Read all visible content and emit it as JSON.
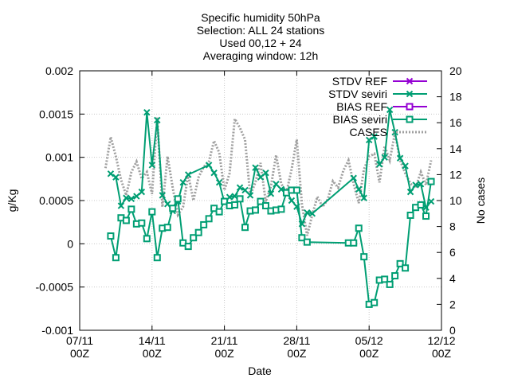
{
  "chart_data": {
    "type": "line",
    "title_lines": [
      "Specific humidity 50hPa",
      "Selection: ALL     24 stations",
      "Used 00,12 + 24",
      "Averaging window: 12h"
    ],
    "xlabel": "Date",
    "ylabel": "g/Kg",
    "y2label": "No cases",
    "xlim": [
      "2021-11-07T00:00",
      "2021-12-12T00:00"
    ],
    "ylim": [
      -0.001,
      0.002
    ],
    "y2lim": [
      0,
      20
    ],
    "x_ticks": [
      {
        "date": "2021-11-07T00:00",
        "line1": "07/11",
        "line2": "00Z"
      },
      {
        "date": "2021-11-14T00:00",
        "line1": "14/11",
        "line2": "00Z"
      },
      {
        "date": "2021-11-21T00:00",
        "line1": "21/11",
        "line2": "00Z"
      },
      {
        "date": "2021-11-28T00:00",
        "line1": "28/11",
        "line2": "00Z"
      },
      {
        "date": "2021-12-05T00:00",
        "line1": "05/12",
        "line2": "00Z"
      },
      {
        "date": "2021-12-12T00:00",
        "line1": "12/12",
        "line2": "00Z"
      }
    ],
    "y_ticks": [
      "-0.001",
      "-0.0005",
      "0",
      "0.0005",
      "0.001",
      "0.0015",
      "0.002"
    ],
    "y2_ticks": [
      "0",
      "2",
      "4",
      "6",
      "8",
      "10",
      "12",
      "14",
      "16",
      "18",
      "20"
    ],
    "grid": true,
    "legend_position": "top-right",
    "series": [
      {
        "name": "STDV REF",
        "axis": "y1",
        "color": "#9400d3",
        "marker": "x",
        "style": "solid",
        "x": [],
        "y": []
      },
      {
        "name": "STDV seviri",
        "axis": "y1",
        "color": "#009e73",
        "marker": "x",
        "style": "solid",
        "x": [
          "2021-11-10T00:00",
          "2021-11-10T12:00",
          "2021-11-11T00:00",
          "2021-11-11T12:00",
          "2021-11-12T00:00",
          "2021-11-12T12:00",
          "2021-11-13T00:00",
          "2021-11-13T12:00",
          "2021-11-14T00:00",
          "2021-11-14T12:00",
          "2021-11-15T00:00",
          "2021-11-15T12:00",
          "2021-11-16T00:00",
          "2021-11-16T12:00",
          "2021-11-17T00:00",
          "2021-11-17T12:00",
          "2021-11-19T12:00",
          "2021-11-20T00:00",
          "2021-11-20T12:00",
          "2021-11-21T00:00",
          "2021-11-21T12:00",
          "2021-11-22T00:00",
          "2021-11-22T12:00",
          "2021-11-23T00:00",
          "2021-11-23T12:00",
          "2021-11-24T00:00",
          "2021-11-24T12:00",
          "2021-11-25T00:00",
          "2021-11-25T12:00",
          "2021-11-26T00:00",
          "2021-11-26T12:00",
          "2021-11-27T00:00",
          "2021-11-27T12:00",
          "2021-11-28T00:00",
          "2021-11-28T12:00",
          "2021-11-29T00:00",
          "2021-11-29T12:00",
          "2021-12-03T12:00",
          "2021-12-04T00:00",
          "2021-12-04T12:00",
          "2021-12-05T00:00",
          "2021-12-05T12:00",
          "2021-12-06T00:00",
          "2021-12-06T12:00",
          "2021-12-07T00:00",
          "2021-12-07T12:00",
          "2021-12-08T00:00",
          "2021-12-08T12:00",
          "2021-12-09T00:00",
          "2021-12-09T12:00",
          "2021-12-10T00:00",
          "2021-12-10T12:00",
          "2021-12-11T00:00"
        ],
        "y": [
          0.00081,
          0.00077,
          0.00044,
          0.00053,
          0.00052,
          0.00055,
          0.0006,
          0.00152,
          0.00091,
          0.00143,
          0.00056,
          0.00046,
          0.00038,
          0.00049,
          0.00071,
          0.0008,
          0.00091,
          0.00082,
          0.00071,
          0.00048,
          0.00054,
          0.00055,
          0.00065,
          0.00062,
          0.00056,
          0.00088,
          0.00077,
          0.00082,
          0.00058,
          0.00069,
          0.00063,
          0.00061,
          0.0005,
          0.00043,
          0.00023,
          0.00036,
          0.00035,
          0.00076,
          0.00063,
          0.00053,
          0.0012,
          0.00124,
          0.00092,
          0.001,
          0.00155,
          0.00129,
          0.00099,
          0.0009,
          0.0006,
          0.00068,
          0.00069,
          0.00042,
          0.00049
        ]
      },
      {
        "name": "BIAS REF",
        "axis": "y1",
        "color": "#9400d3",
        "marker": "square",
        "style": "solid",
        "x": [],
        "y": []
      },
      {
        "name": "BIAS seviri",
        "axis": "y1",
        "color": "#009e73",
        "marker": "square",
        "style": "solid",
        "x": [
          "2021-11-10T00:00",
          "2021-11-10T12:00",
          "2021-11-11T00:00",
          "2021-11-11T12:00",
          "2021-11-12T00:00",
          "2021-11-12T12:00",
          "2021-11-13T00:00",
          "2021-11-13T12:00",
          "2021-11-14T00:00",
          "2021-11-14T12:00",
          "2021-11-15T00:00",
          "2021-11-15T12:00",
          "2021-11-16T00:00",
          "2021-11-16T12:00",
          "2021-11-17T00:00",
          "2021-11-17T12:00",
          "2021-11-18T00:00",
          "2021-11-18T12:00",
          "2021-11-19T00:00",
          "2021-11-19T12:00",
          "2021-11-20T00:00",
          "2021-11-20T12:00",
          "2021-11-21T00:00",
          "2021-11-21T12:00",
          "2021-11-22T00:00",
          "2021-11-22T12:00",
          "2021-11-23T00:00",
          "2021-11-23T12:00",
          "2021-11-24T00:00",
          "2021-11-24T12:00",
          "2021-11-25T00:00",
          "2021-11-25T12:00",
          "2021-11-26T00:00",
          "2021-11-26T12:00",
          "2021-11-27T00:00",
          "2021-11-27T12:00",
          "2021-11-28T00:00",
          "2021-11-28T12:00",
          "2021-11-29T00:00",
          "2021-12-03T00:00",
          "2021-12-03T12:00",
          "2021-12-04T00:00",
          "2021-12-04T12:00",
          "2021-12-05T00:00",
          "2021-12-05T12:00",
          "2021-12-06T00:00",
          "2021-12-06T12:00",
          "2021-12-07T00:00",
          "2021-12-07T12:00",
          "2021-12-08T00:00",
          "2021-12-08T12:00",
          "2021-12-09T00:00",
          "2021-12-09T12:00",
          "2021-12-10T00:00",
          "2021-12-10T12:00",
          "2021-12-11T00:00"
        ],
        "y": [
          9e-05,
          -0.00016,
          0.0003,
          0.00027,
          0.0004,
          0.00023,
          0.00024,
          6e-05,
          0.00037,
          -0.00016,
          0.00018,
          0.00019,
          0.00041,
          0.00052,
          1e-05,
          -3e-05,
          7e-05,
          0.00013,
          0.00022,
          0.00029,
          0.00041,
          0.00037,
          0.00049,
          0.00044,
          0.00045,
          0.00052,
          0.00019,
          0.00038,
          0.00039,
          0.00049,
          0.00044,
          0.00038,
          0.00039,
          0.0004,
          0.00059,
          0.00062,
          0.00062,
          7e-05,
          2e-05,
          1e-05,
          1e-05,
          0.00018,
          -0.00015,
          -0.0007,
          -0.00068,
          -0.00042,
          -0.00041,
          -0.00047,
          -0.00037,
          -0.00023,
          -0.00028,
          0.00033,
          0.00042,
          0.00045,
          0.00032,
          0.00072
        ]
      },
      {
        "name": "CASES",
        "axis": "y2",
        "color": "#a0a0a0",
        "marker": "none",
        "style": "dotted",
        "x": [
          "2021-11-09T12:00",
          "2021-11-10T00:00",
          "2021-11-10T12:00",
          "2021-11-11T00:00",
          "2021-11-11T12:00",
          "2021-11-12T00:00",
          "2021-11-12T12:00",
          "2021-11-13T00:00",
          "2021-11-13T12:00",
          "2021-11-14T00:00",
          "2021-11-14T12:00",
          "2021-11-15T00:00",
          "2021-11-15T12:00",
          "2021-11-16T00:00",
          "2021-11-16T12:00",
          "2021-11-17T00:00",
          "2021-11-17T12:00",
          "2021-11-18T00:00",
          "2021-11-18T12:00",
          "2021-11-19T00:00",
          "2021-11-19T12:00",
          "2021-11-20T00:00",
          "2021-11-20T12:00",
          "2021-11-21T00:00",
          "2021-11-21T12:00",
          "2021-11-22T00:00",
          "2021-11-22T12:00",
          "2021-11-23T00:00",
          "2021-11-23T12:00",
          "2021-11-24T00:00",
          "2021-11-24T12:00",
          "2021-11-25T00:00",
          "2021-11-25T12:00",
          "2021-11-26T00:00",
          "2021-11-26T12:00",
          "2021-11-27T00:00",
          "2021-11-27T12:00",
          "2021-11-28T00:00",
          "2021-11-28T12:00",
          "2021-11-29T00:00",
          "2021-11-29T12:00",
          "2021-11-30T00:00",
          "2021-11-30T12:00",
          "2021-12-01T00:00",
          "2021-12-01T12:00",
          "2021-12-02T00:00",
          "2021-12-02T12:00",
          "2021-12-03T00:00",
          "2021-12-03T12:00",
          "2021-12-04T00:00",
          "2021-12-04T12:00",
          "2021-12-05T00:00",
          "2021-12-05T12:00",
          "2021-12-06T00:00",
          "2021-12-06T12:00",
          "2021-12-07T00:00",
          "2021-12-07T12:00",
          "2021-12-08T00:00",
          "2021-12-08T12:00",
          "2021-12-09T00:00",
          "2021-12-09T12:00",
          "2021-12-10T00:00",
          "2021-12-10T12:00",
          "2021-12-11T00:00"
        ],
        "y": [
          12.5,
          14.9,
          13.4,
          11.6,
          10.4,
          12.2,
          13.0,
          11.7,
          12.2,
          10.5,
          16.4,
          9.5,
          13.4,
          11.0,
          8.9,
          9.5,
          12.0,
          10.0,
          11.8,
          12.6,
          13.0,
          14.6,
          13.7,
          10.8,
          12.1,
          16.3,
          15.6,
          14.7,
          10.4,
          11.4,
          12.9,
          9.9,
          11.1,
          13.5,
          11.3,
          10.6,
          12.4,
          14.7,
          9.7,
          7.3,
          8.9,
          10.3,
          9.5,
          10.1,
          11.5,
          11.0,
          12.3,
          13.1,
          11.3,
          9.8,
          12.4,
          13.4,
          13.6,
          11.4,
          14.2,
          13.1,
          15.2,
          13.1,
          12.1,
          11.3,
          11.0,
          12.2,
          11.2,
          13.1
        ]
      }
    ]
  }
}
